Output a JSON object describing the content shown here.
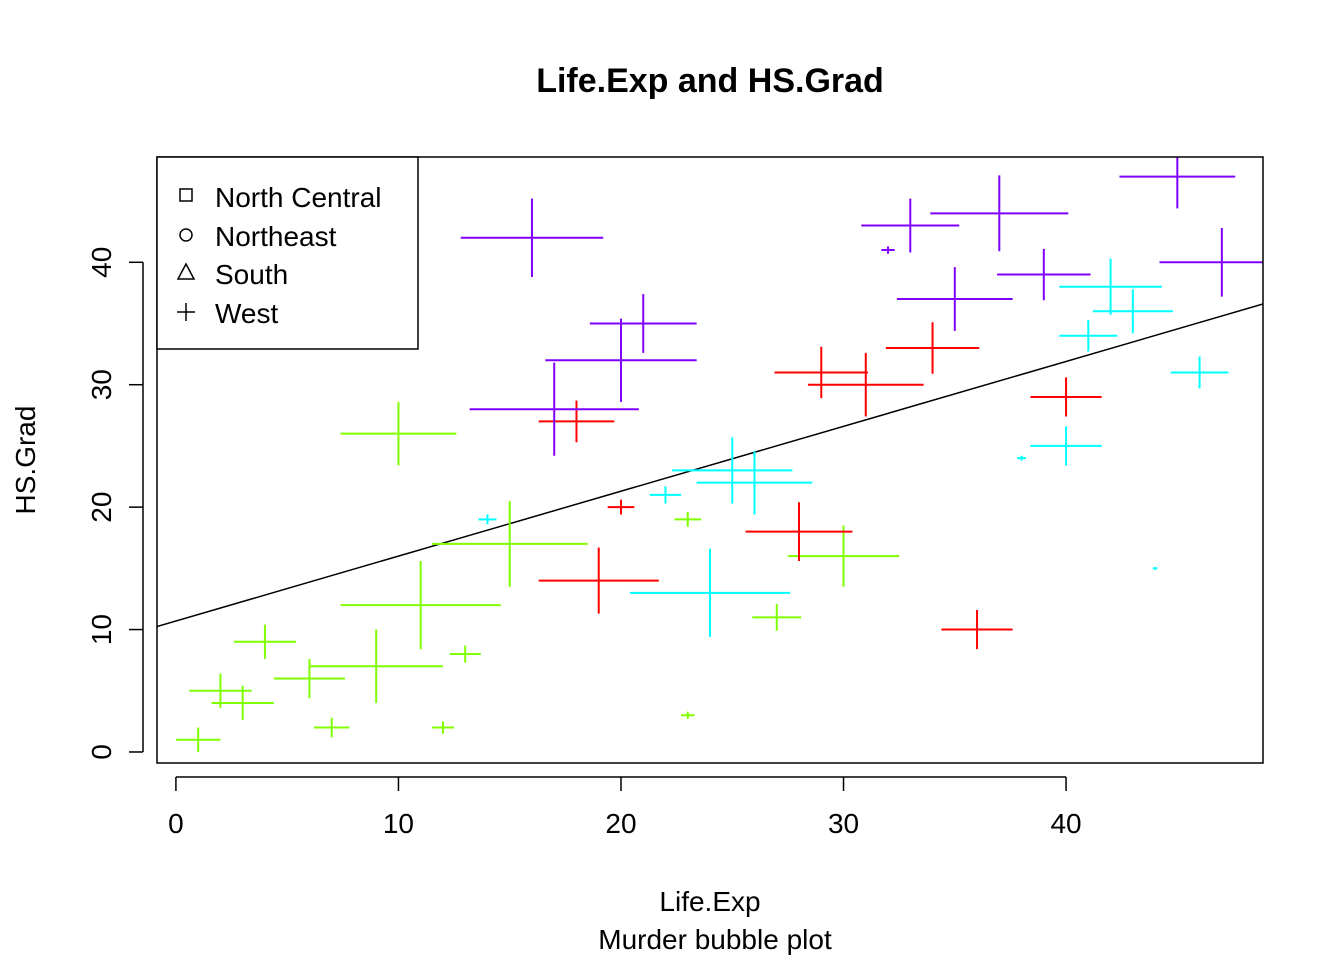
{
  "chart_data": {
    "type": "scatter",
    "title": "Life.Exp and HS.Grad",
    "xlabel": "Life.Exp",
    "ylabel": "HS.Grad",
    "subtitle": "Murder bubble plot",
    "xlim": [
      -0.85,
      48.85
    ],
    "ylim": [
      -0.9,
      48.6
    ],
    "xticks": [
      "0",
      "10",
      "20",
      "30",
      "40"
    ],
    "yticks": [
      "0",
      "10",
      "20",
      "30",
      "40"
    ],
    "grid": false,
    "legend": {
      "position": "top-left",
      "entries": [
        {
          "label": "North Central",
          "symbol": "square"
        },
        {
          "label": "Northeast",
          "symbol": "circle"
        },
        {
          "label": "South",
          "symbol": "triangle"
        },
        {
          "label": "West",
          "symbol": "plus"
        }
      ]
    },
    "point_shape": "plus",
    "colors": {
      "green": "#80ff00",
      "red": "#ff0000",
      "cyan": "#00ffff",
      "purple": "#8000ff",
      "line": "#000000"
    },
    "points": [
      {
        "x": 1,
        "y": 1,
        "size": 1.0,
        "color": "green"
      },
      {
        "x": 2,
        "y": 5,
        "size": 1.4,
        "color": "green"
      },
      {
        "x": 3,
        "y": 4,
        "size": 1.4,
        "color": "green"
      },
      {
        "x": 4,
        "y": 9,
        "size": 1.4,
        "color": "green"
      },
      {
        "x": 6,
        "y": 6,
        "size": 1.6,
        "color": "green"
      },
      {
        "x": 7,
        "y": 2,
        "size": 0.8,
        "color": "green"
      },
      {
        "x": 9,
        "y": 7,
        "size": 3.0,
        "color": "green"
      },
      {
        "x": 10,
        "y": 26,
        "size": 2.6,
        "color": "green"
      },
      {
        "x": 11,
        "y": 12,
        "size": 3.6,
        "color": "green"
      },
      {
        "x": 12,
        "y": 2,
        "size": 0.5,
        "color": "green"
      },
      {
        "x": 13,
        "y": 8,
        "size": 0.7,
        "color": "green"
      },
      {
        "x": 15,
        "y": 17,
        "size": 3.5,
        "color": "green"
      },
      {
        "x": 23,
        "y": 3,
        "size": 0.3,
        "color": "green"
      },
      {
        "x": 23,
        "y": 19,
        "size": 0.6,
        "color": "green"
      },
      {
        "x": 27,
        "y": 11,
        "size": 1.1,
        "color": "green"
      },
      {
        "x": 30,
        "y": 16,
        "size": 2.5,
        "color": "green"
      },
      {
        "x": 18,
        "y": 27,
        "size": 1.7,
        "color": "red"
      },
      {
        "x": 19,
        "y": 14,
        "size": 2.7,
        "color": "red"
      },
      {
        "x": 20,
        "y": 20,
        "size": 0.6,
        "color": "red"
      },
      {
        "x": 28,
        "y": 18,
        "size": 2.4,
        "color": "red"
      },
      {
        "x": 29,
        "y": 31,
        "size": 2.1,
        "color": "red"
      },
      {
        "x": 31,
        "y": 30,
        "size": 2.6,
        "color": "red"
      },
      {
        "x": 34,
        "y": 33,
        "size": 2.1,
        "color": "red"
      },
      {
        "x": 36,
        "y": 10,
        "size": 1.6,
        "color": "red"
      },
      {
        "x": 40,
        "y": 29,
        "size": 1.6,
        "color": "red"
      },
      {
        "x": 14,
        "y": 19,
        "size": 0.4,
        "color": "cyan"
      },
      {
        "x": 22,
        "y": 21,
        "size": 0.7,
        "color": "cyan"
      },
      {
        "x": 24,
        "y": 13,
        "size": 3.6,
        "color": "cyan"
      },
      {
        "x": 25,
        "y": 23,
        "size": 2.7,
        "color": "cyan"
      },
      {
        "x": 26,
        "y": 22,
        "size": 2.6,
        "color": "cyan"
      },
      {
        "x": 38,
        "y": 24,
        "size": 0.2,
        "color": "cyan"
      },
      {
        "x": 40,
        "y": 25,
        "size": 1.6,
        "color": "cyan"
      },
      {
        "x": 41,
        "y": 34,
        "size": 1.3,
        "color": "cyan"
      },
      {
        "x": 42,
        "y": 38,
        "size": 2.3,
        "color": "cyan"
      },
      {
        "x": 43,
        "y": 36,
        "size": 1.8,
        "color": "cyan"
      },
      {
        "x": 44,
        "y": 15,
        "size": 0.1,
        "color": "cyan"
      },
      {
        "x": 46,
        "y": 31,
        "size": 1.3,
        "color": "cyan"
      },
      {
        "x": 16,
        "y": 42,
        "size": 3.2,
        "color": "purple"
      },
      {
        "x": 17,
        "y": 28,
        "size": 3.8,
        "color": "purple"
      },
      {
        "x": 20,
        "y": 32,
        "size": 3.4,
        "color": "purple"
      },
      {
        "x": 21,
        "y": 35,
        "size": 2.4,
        "color": "purple"
      },
      {
        "x": 32,
        "y": 41,
        "size": 0.3,
        "color": "purple"
      },
      {
        "x": 33,
        "y": 43,
        "size": 2.2,
        "color": "purple"
      },
      {
        "x": 35,
        "y": 37,
        "size": 2.6,
        "color": "purple"
      },
      {
        "x": 37,
        "y": 44,
        "size": 3.1,
        "color": "purple"
      },
      {
        "x": 39,
        "y": 39,
        "size": 2.1,
        "color": "purple"
      },
      {
        "x": 45,
        "y": 47,
        "size": 2.6,
        "color": "purple"
      },
      {
        "x": 47,
        "y": 40,
        "size": 2.8,
        "color": "purple"
      }
    ],
    "regression_line": {
      "intercept": 10.7,
      "slope": 0.53
    }
  }
}
